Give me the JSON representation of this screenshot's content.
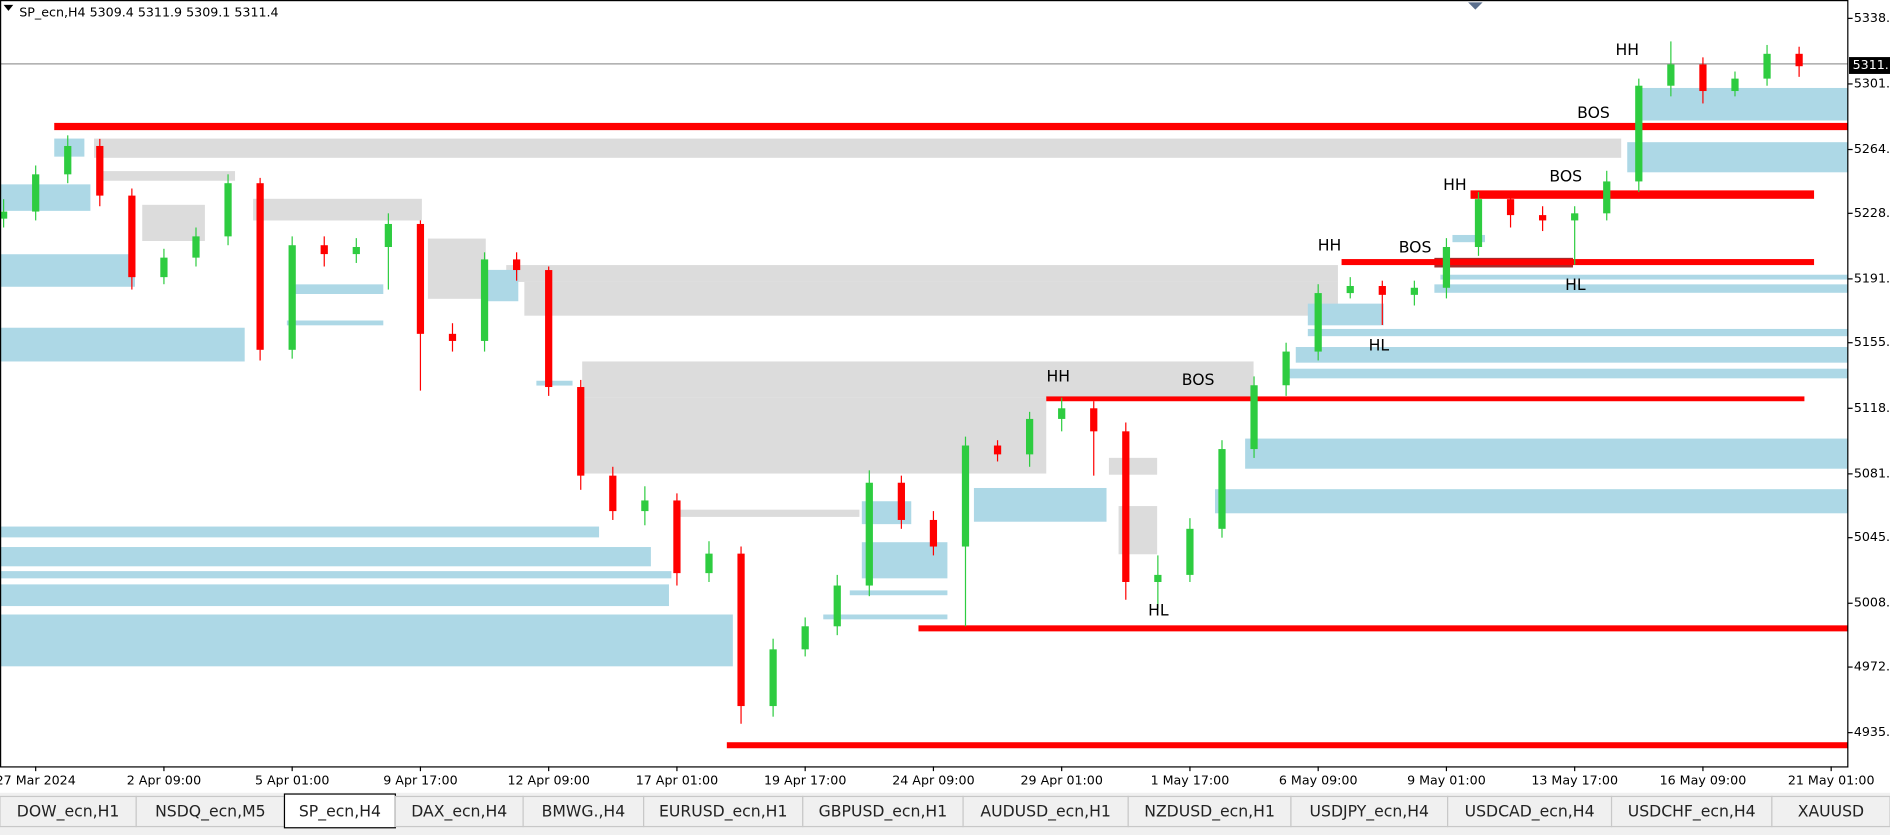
{
  "chart_data": {
    "type": "candlestick",
    "title": "SP_ecn,H4  5309.4 5311.9 5309.1 5311.4",
    "categories": [
      null,
      "27 Mar 2024",
      null,
      null,
      null,
      "2 Apr 09:00",
      null,
      null,
      null,
      "5 Apr 01:00",
      null,
      null,
      null,
      "9 Apr 17:00",
      null,
      null,
      null,
      "12 Apr 09:00",
      null,
      null,
      null,
      "17 Apr 01:00",
      null,
      null,
      null,
      "19 Apr 17:00",
      null,
      null,
      null,
      "24 Apr 09:00",
      null,
      null,
      null,
      "29 Apr 01:00",
      null,
      null,
      null,
      "1 May 17:00",
      null,
      null,
      null,
      "6 May 09:00",
      null,
      null,
      null,
      "9 May 01:00",
      null,
      null,
      null,
      "13 May 17:00",
      null,
      null,
      null,
      "16 May 09:00",
      null,
      null,
      null,
      "21 May 01:00"
    ],
    "open": [
      5225,
      5229,
      5250,
      5266,
      5238,
      5192,
      5203,
      5215,
      5245,
      5151,
      5210,
      5205,
      5209,
      5222,
      5160,
      5156,
      5202,
      5196,
      5130,
      5080,
      5060,
      5066,
      5025,
      5036,
      4950,
      4982,
      4995,
      5018,
      5076,
      5055,
      5040,
      5097,
      5092,
      5112,
      5118,
      5105,
      5020,
      5024,
      5050,
      5095,
      5131,
      5150,
      5183,
      5187,
      5182,
      5186,
      5209,
      5236,
      5227,
      5224,
      5228,
      5246,
      5300,
      5312,
      5297,
      5304,
      5318,
      null
    ],
    "high": [
      5236,
      5255,
      5272,
      5270,
      5242,
      5208,
      5220,
      5250,
      5248,
      5215,
      5215,
      5214,
      5228,
      5224,
      5166,
      5206,
      5206,
      5198,
      5134,
      5085,
      5074,
      5070,
      5043,
      5040,
      4988,
      5000,
      5024,
      5083,
      5080,
      5060,
      5102,
      5100,
      5116,
      5124,
      5122,
      5110,
      5035,
      5056,
      5100,
      5136,
      5155,
      5188,
      5192,
      5190,
      5190,
      5214,
      5240,
      5240,
      5232,
      5232,
      5252,
      5304,
      5325,
      5316,
      5308,
      5323,
      5322,
      null
    ],
    "low": [
      5220,
      5224,
      5245,
      5232,
      5185,
      5188,
      5198,
      5210,
      5145,
      5146,
      5198,
      5200,
      5185,
      5128,
      5150,
      5150,
      5190,
      5125,
      5072,
      5055,
      5052,
      5018,
      5020,
      4940,
      4944,
      4978,
      4990,
      5012,
      5050,
      5035,
      4995,
      5088,
      5085,
      5105,
      5080,
      5010,
      5005,
      5020,
      5045,
      5090,
      5125,
      5145,
      5180,
      5165,
      5176,
      5180,
      5204,
      5220,
      5218,
      5199,
      5224,
      5240,
      5294,
      5290,
      5294,
      5300,
      5305,
      null
    ],
    "close": [
      5229,
      5250,
      5266,
      5238,
      5192,
      5203,
      5215,
      5245,
      5151,
      5210,
      5205,
      5209,
      5222,
      5160,
      5156,
      5202,
      5196,
      5130,
      5080,
      5060,
      5066,
      5025,
      5036,
      4950,
      4982,
      4995,
      5018,
      5076,
      5055,
      5040,
      5097,
      5092,
      5112,
      5118,
      5105,
      5020,
      5024,
      5050,
      5095,
      5131,
      5150,
      5183,
      5187,
      5182,
      5186,
      5209,
      5236,
      5227,
      5224,
      5228,
      5246,
      5300,
      5312,
      5297,
      5304,
      5318,
      5311,
      null
    ],
    "up_color": "#2ecc40",
    "down_color": "#ff0000",
    "ylim": [
      4916,
      5347
    ],
    "yticks": [
      {
        "value": 4935,
        "label": "4935."
      },
      {
        "value": 4972,
        "label": "4972."
      },
      {
        "value": 5008,
        "label": "5008."
      },
      {
        "value": 5045,
        "label": "5045."
      },
      {
        "value": 5081,
        "label": "5081."
      },
      {
        "value": 5118,
        "label": "5118."
      },
      {
        "value": 5155,
        "label": "5155."
      },
      {
        "value": 5191,
        "label": "5191."
      },
      {
        "value": 5228,
        "label": "5228."
      },
      {
        "value": 5264,
        "label": "5264."
      },
      {
        "value": 5301,
        "label": "5301."
      },
      {
        "value": 5338,
        "label": "5338."
      }
    ],
    "last_price": {
      "value": 5311.4,
      "label": "5311."
    },
    "annotations": [
      "HH",
      "BOS",
      "BOS",
      "HH",
      "HH",
      "BOS",
      "HL",
      "HL",
      "HH",
      "BOS",
      "HL"
    ]
  },
  "tabs": [
    "DOW_ecn,H1",
    "NSDQ_ecn,M5",
    "SP_ecn,H4",
    "DAX_ecn,H4",
    "BMWG.,H4",
    "EURUSD_ecn,H1",
    "GBPUSD_ecn,H1",
    "AUDUSD_ecn,H1",
    "NZDUSD_ecn,H1",
    "USDJPY_ecn,H4",
    "USDCAD_ecn,H4",
    "USDCHF_ecn,H4",
    "XAUUSD"
  ]
}
